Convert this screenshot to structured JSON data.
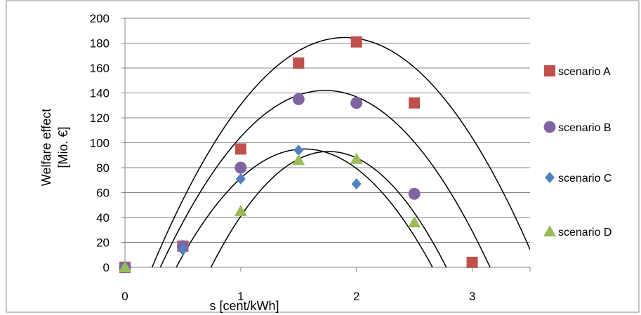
{
  "chart_data": {
    "type": "scatter",
    "title": "",
    "xlabel": "s [cent/kWh]",
    "ylabel_lines": [
      "Welfare effect",
      "[Mio. €]"
    ],
    "xlim": [
      0,
      3.5
    ],
    "ylim": [
      0,
      200
    ],
    "x_ticks": [
      0,
      1,
      2,
      3
    ],
    "y_ticks": [
      0,
      20,
      40,
      60,
      80,
      100,
      120,
      140,
      160,
      180,
      200
    ],
    "grid": "horizontal",
    "legend_position": "right",
    "series": [
      {
        "name": "scenario A",
        "marker": "square",
        "color": "#c0504d",
        "x": [
          0,
          0.5,
          1.0,
          1.5,
          2.0,
          2.5,
          3.0
        ],
        "y": [
          0,
          17,
          95,
          164,
          181,
          132,
          4
        ],
        "trend": {
          "type": "poly",
          "a": -66.5,
          "h": 1.9,
          "k": 184.5
        }
      },
      {
        "name": "scenario B",
        "marker": "circle",
        "color": "#8064a2",
        "x": [
          0,
          0.5,
          1.0,
          1.5,
          2.0,
          2.5
        ],
        "y": [
          0,
          17,
          80,
          135,
          132,
          59
        ],
        "trend": {
          "type": "poly",
          "a": -70,
          "h": 1.73,
          "k": 142
        }
      },
      {
        "name": "scenario C",
        "marker": "diamond",
        "color": "#4f81bd",
        "x": [
          0,
          0.5,
          1.0,
          1.5,
          2.0
        ],
        "y": [
          0,
          14,
          71,
          94,
          67
        ],
        "trend": {
          "type": "poly",
          "a": -77.5,
          "h": 1.55,
          "k": 95
        }
      },
      {
        "name": "scenario D",
        "marker": "triangle",
        "color": "#9bbb59",
        "x": [
          0,
          1.0,
          1.5,
          2.0,
          2.5
        ],
        "y": [
          0,
          45,
          86,
          87,
          36
        ],
        "trend": {
          "type": "poly",
          "a": -90,
          "h": 1.76,
          "k": 93
        }
      }
    ]
  }
}
